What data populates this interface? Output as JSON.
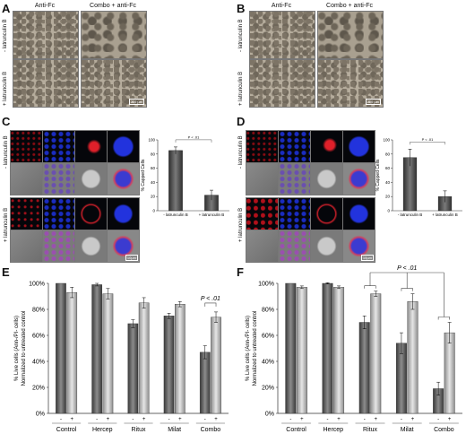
{
  "panels": {
    "A": {
      "label": "A",
      "col_headers": [
        "Anti-Fc",
        "Combo + anti-Fc"
      ],
      "row_labels": [
        "- latrunculin B",
        "+ latrunculin B"
      ],
      "scale_bar": "200 µm"
    },
    "B": {
      "label": "B",
      "col_headers": [
        "Anti-Fc",
        "Combo + anti-Fc"
      ],
      "row_labels": [
        "- latrunculin B",
        "+ latrunculin B"
      ],
      "scale_bar": "200 µm"
    },
    "C": {
      "label": "C",
      "row_labels": [
        "- latrunculin B",
        "+ latrunculin B"
      ],
      "scale_bar": "10µm"
    },
    "D": {
      "label": "D",
      "row_labels": [
        "- latrunculin B",
        "+ latrunculin B"
      ],
      "scale_bar": "10µm"
    },
    "E": {
      "label": "E"
    },
    "F": {
      "label": "F"
    }
  },
  "chart_data": [
    {
      "id": "C",
      "type": "bar",
      "categories": [
        "- latrunculin B",
        "+ latrunculin B"
      ],
      "values": [
        85,
        22
      ],
      "errors": [
        5,
        7
      ],
      "ylabel": "% Capped Cells",
      "ylim": [
        0,
        100
      ],
      "yticks": [
        0,
        20,
        40,
        60,
        80,
        100
      ],
      "annotation": "P < .01"
    },
    {
      "id": "D",
      "type": "bar",
      "categories": [
        "- latrunculin B",
        "+ latrunculin B"
      ],
      "values": [
        75,
        20
      ],
      "errors": [
        12,
        8
      ],
      "ylabel": "% Capped Cells",
      "ylim": [
        0,
        100
      ],
      "yticks": [
        0,
        20,
        40,
        60,
        80,
        100
      ],
      "annotation": "P < .01"
    },
    {
      "id": "E",
      "type": "bar",
      "groups": [
        "Control",
        "Hercep",
        "Ritux",
        "Milat",
        "Combo"
      ],
      "subcategories": [
        "-",
        "+"
      ],
      "series": [
        {
          "values": [
            100,
            99,
            69,
            75,
            47
          ],
          "errors": [
            0,
            1,
            3,
            2,
            5
          ]
        },
        {
          "values": [
            93,
            92,
            85,
            84,
            74
          ],
          "errors": [
            4,
            4,
            4,
            2,
            4
          ]
        }
      ],
      "ylabel": [
        "% Live cells (Ann-/PI- cells)",
        "Normalized to untreated control"
      ],
      "ylim": [
        0,
        100
      ],
      "yticks": [
        "0%",
        "20%",
        "40%",
        "60%",
        "80%",
        "100%"
      ],
      "annotation": "P < .01"
    },
    {
      "id": "F",
      "type": "bar",
      "groups": [
        "Control",
        "Hercep",
        "Ritux",
        "Milat",
        "Combo"
      ],
      "subcategories": [
        "-",
        "+"
      ],
      "series": [
        {
          "values": [
            100,
            100,
            70,
            54,
            19
          ],
          "errors": [
            0,
            0.5,
            5,
            8,
            5
          ]
        },
        {
          "values": [
            97,
            97,
            92,
            86,
            62
          ],
          "errors": [
            1,
            1,
            2,
            6,
            8
          ]
        }
      ],
      "ylabel": [
        "% Live cells (Ann-/PI- cells)",
        "Normalized to untreated control"
      ],
      "ylim": [
        0,
        100
      ],
      "yticks": [
        "0%",
        "20%",
        "40%",
        "60%",
        "80%",
        "100%"
      ],
      "annotation": "P < .01"
    }
  ]
}
